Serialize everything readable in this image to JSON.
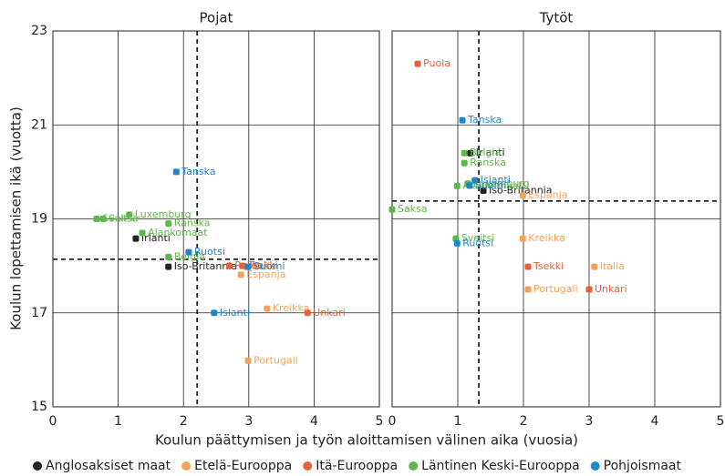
{
  "xlabel": "Koulun päättymisen ja työn aloittamisen välinen aika (vuosia)",
  "ylabel": "Koulun lopettamisen ikä (vuotta)",
  "groups": [
    {
      "name": "Anglosaksiset maat",
      "color": "#222222"
    },
    {
      "name": "Etelä-Eurooppa",
      "color": "#f4a259"
    },
    {
      "name": "Itä-Eurooppa",
      "color": "#e8603c"
    },
    {
      "name": "Läntinen Keski-Eurooppa",
      "color": "#5cb84a"
    },
    {
      "name": "Pohjoismaat",
      "color": "#1f88c9"
    }
  ],
  "chart_data": [
    {
      "type": "scatter",
      "title": "Pojat",
      "xlim": [
        0,
        5
      ],
      "ylim": [
        15,
        23
      ],
      "xticks": [
        0,
        1,
        2,
        3,
        4,
        5
      ],
      "yticks": [
        15,
        17,
        19,
        21,
        23
      ],
      "grid": true,
      "vline": 2.21,
      "hline": 18.14,
      "series": [
        {
          "labels": [
            "Irlanti",
            "Iso-Britannia"
          ],
          "x": [
            1.27,
            1.77
          ],
          "values": [
            18.58,
            17.98
          ]
        },
        {
          "labels": [
            "Kreikka",
            "Espanja",
            "Italia",
            "Portugali"
          ],
          "x": [
            3.28,
            2.88,
            2.96,
            2.99
          ],
          "values": [
            17.09,
            17.81,
            17.98,
            15.98
          ]
        },
        {
          "labels": [
            "Tsekki",
            "Puola",
            "Unkari"
          ],
          "x": [
            2.9,
            2.7,
            3.9
          ],
          "values": [
            18.0,
            18.0,
            17.0
          ]
        },
        {
          "labels": [
            "Sveitsi",
            "Saksa",
            "Luxemburg",
            "Alankomaat",
            "Ranska",
            "Belgia"
          ],
          "x": [
            0.67,
            0.77,
            1.17,
            1.37,
            1.77,
            1.77
          ],
          "values": [
            19.0,
            19.0,
            19.09,
            18.7,
            18.9,
            18.19
          ]
        },
        {
          "labels": [
            "Tanska",
            "Ruotsi",
            "Suomi",
            "Islanti"
          ],
          "x": [
            1.89,
            2.08,
            2.99,
            2.47
          ],
          "values": [
            20.0,
            18.29,
            17.98,
            17.0
          ]
        }
      ]
    },
    {
      "type": "scatter",
      "title": "Tytöt",
      "xlim": [
        0,
        5
      ],
      "ylim": [
        15,
        23
      ],
      "xticks": [
        0,
        1,
        2,
        3,
        4,
        5
      ],
      "yticks": [
        15,
        17,
        19,
        21,
        23
      ],
      "grid": true,
      "vline": 1.32,
      "hline": 19.38,
      "series": [
        {
          "labels": [
            "Irlanti",
            "Iso-Britannia"
          ],
          "x": [
            1.19,
            1.39
          ],
          "values": [
            20.4,
            19.6
          ]
        },
        {
          "labels": [
            "Espanja",
            "Kreikka",
            "Italia",
            "Portugali"
          ],
          "x": [
            1.99,
            1.99,
            3.08,
            2.07
          ],
          "values": [
            19.5,
            18.58,
            17.98,
            17.5
          ]
        },
        {
          "labels": [
            "Puola",
            "Tsekki",
            "Unkari"
          ],
          "x": [
            0.39,
            2.07,
            3.0
          ],
          "values": [
            22.3,
            17.98,
            17.5
          ]
        },
        {
          "labels": [
            "Belgia",
            "Ranska",
            "Luxemburg",
            "Alankomaat",
            "Saksa",
            "Sveitsi"
          ],
          "x": [
            1.1,
            1.1,
            1.15,
            0.99,
            0.0,
            0.97
          ],
          "values": [
            20.4,
            20.19,
            19.75,
            19.7,
            19.2,
            18.58
          ]
        },
        {
          "labels": [
            "Tanska",
            "Islanti",
            "Suomi",
            "Ruotsi"
          ],
          "x": [
            1.07,
            1.26,
            1.18,
            0.99
          ],
          "values": [
            21.1,
            19.82,
            19.71,
            18.48
          ]
        }
      ]
    }
  ]
}
